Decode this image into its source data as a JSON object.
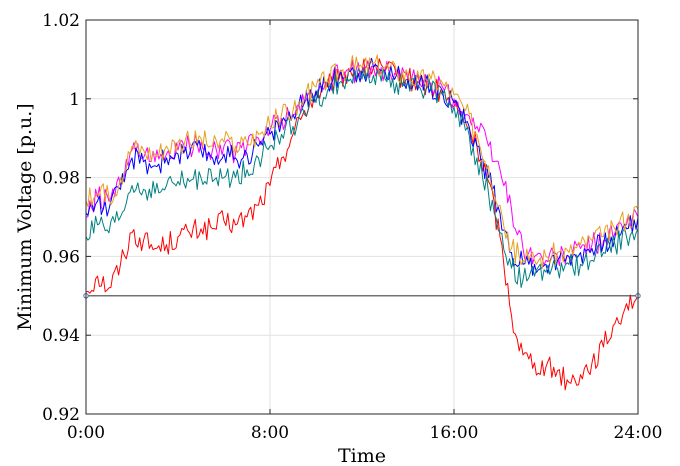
{
  "chart_data": {
    "type": "line",
    "xlabel": "Time",
    "ylabel": "Minimum Voltage [p.u.]",
    "xlim": [
      0,
      24
    ],
    "ylim": [
      0.92,
      1.02
    ],
    "x_ticks": [
      0,
      8,
      16,
      24
    ],
    "x_tick_labels": [
      "0:00",
      "8:00",
      "16:00",
      "24:00"
    ],
    "y_ticks": [
      0.92,
      0.94,
      0.96,
      0.98,
      1.0,
      1.02
    ],
    "y_tick_labels": [
      "0.92",
      "0.94",
      "0.96",
      "0.98",
      "1",
      "1.02"
    ],
    "grid": true,
    "x": [
      0,
      0.5,
      1,
      1.5,
      2,
      2.5,
      3,
      3.5,
      4,
      4.5,
      5,
      5.5,
      6,
      6.5,
      7,
      7.5,
      8,
      8.5,
      9,
      9.5,
      10,
      10.5,
      11,
      11.5,
      12,
      12.5,
      13,
      13.5,
      14,
      14.5,
      15,
      15.5,
      16,
      16.5,
      17,
      17.5,
      18,
      18.5,
      19,
      19.5,
      20,
      20.5,
      21,
      21.5,
      22,
      22.5,
      23,
      23.5,
      24
    ],
    "series": [
      {
        "color": "#ff0000",
        "values": [
          0.951,
          0.955,
          0.952,
          0.958,
          0.966,
          0.964,
          0.962,
          0.963,
          0.965,
          0.966,
          0.967,
          0.967,
          0.969,
          0.968,
          0.97,
          0.973,
          0.978,
          0.985,
          0.991,
          0.997,
          1.001,
          1.003,
          1.005,
          1.007,
          1.007,
          1.008,
          1.007,
          1.006,
          1.005,
          1.004,
          1.003,
          1.001,
          0.998,
          0.994,
          0.988,
          0.979,
          0.965,
          0.945,
          0.935,
          0.933,
          0.932,
          0.931,
          0.928,
          0.93,
          0.933,
          0.937,
          0.943,
          0.948,
          0.95
        ]
      },
      {
        "color": "#ff00ff",
        "values": [
          0.97,
          0.975,
          0.974,
          0.978,
          0.987,
          0.985,
          0.984,
          0.986,
          0.987,
          0.988,
          0.989,
          0.987,
          0.988,
          0.986,
          0.988,
          0.99,
          0.992,
          0.995,
          0.996,
          0.999,
          1.002,
          1.004,
          1.006,
          1.007,
          1.007,
          1.008,
          1.007,
          1.006,
          1.005,
          1.004,
          1.004,
          1.003,
          1.0,
          0.996,
          0.993,
          0.988,
          0.982,
          0.972,
          0.962,
          0.96,
          0.959,
          0.96,
          0.96,
          0.962,
          0.963,
          0.964,
          0.966,
          0.968,
          0.97
        ]
      },
      {
        "color": "#0000ff",
        "values": [
          0.971,
          0.974,
          0.972,
          0.977,
          0.985,
          0.984,
          0.983,
          0.985,
          0.986,
          0.986,
          0.987,
          0.985,
          0.986,
          0.985,
          0.986,
          0.988,
          0.991,
          0.994,
          0.996,
          0.999,
          1.002,
          1.004,
          1.006,
          1.007,
          1.007,
          1.008,
          1.007,
          1.006,
          1.005,
          1.004,
          1.003,
          1.002,
          0.999,
          0.994,
          0.988,
          0.98,
          0.971,
          0.961,
          0.958,
          0.958,
          0.958,
          0.959,
          0.96,
          0.961,
          0.962,
          0.963,
          0.965,
          0.967,
          0.97
        ]
      },
      {
        "color": "#008080",
        "values": [
          0.965,
          0.968,
          0.966,
          0.97,
          0.978,
          0.977,
          0.976,
          0.978,
          0.979,
          0.979,
          0.98,
          0.979,
          0.98,
          0.98,
          0.982,
          0.985,
          0.988,
          0.991,
          0.993,
          0.996,
          0.999,
          1.002,
          1.004,
          1.005,
          1.005,
          1.006,
          1.005,
          1.004,
          1.004,
          1.003,
          1.002,
          1.001,
          0.998,
          0.992,
          0.985,
          0.976,
          0.966,
          0.957,
          0.954,
          0.955,
          0.956,
          0.957,
          0.958,
          0.958,
          0.959,
          0.961,
          0.963,
          0.965,
          0.967
        ]
      },
      {
        "color": "#e6a01e",
        "values": [
          0.974,
          0.976,
          0.975,
          0.98,
          0.988,
          0.987,
          0.986,
          0.988,
          0.989,
          0.989,
          0.99,
          0.988,
          0.989,
          0.988,
          0.989,
          0.991,
          0.993,
          0.996,
          0.997,
          1.0,
          1.003,
          1.005,
          1.007,
          1.008,
          1.008,
          1.009,
          1.008,
          1.007,
          1.006,
          1.005,
          1.005,
          1.004,
          1.001,
          0.997,
          0.991,
          0.983,
          0.973,
          0.962,
          0.959,
          0.959,
          0.96,
          0.961,
          0.961,
          0.963,
          0.964,
          0.965,
          0.967,
          0.969,
          0.972
        ]
      }
    ],
    "reference_line": {
      "y": 0.95,
      "color": "#444444"
    }
  }
}
